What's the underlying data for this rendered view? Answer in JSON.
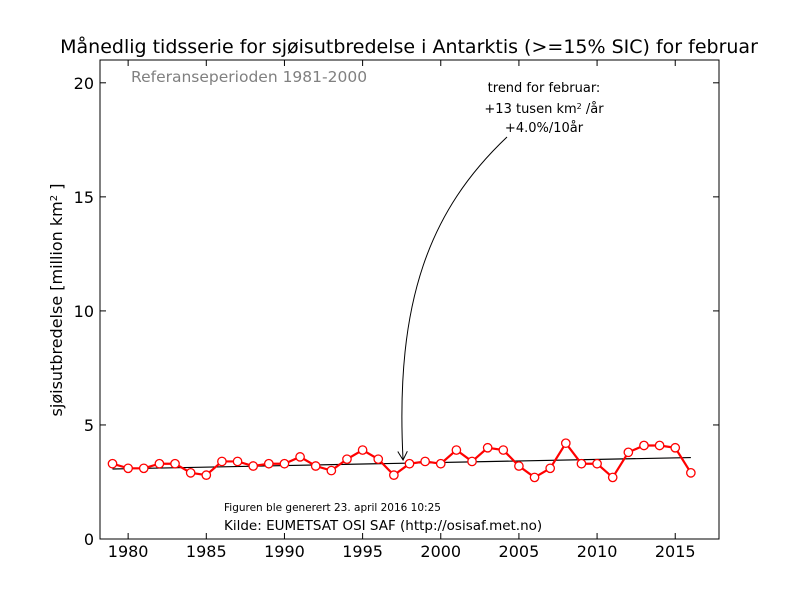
{
  "chart_data": {
    "type": "line",
    "title": "Månedlig tidsserie for sjøisutbredelse i Antarktis (>=15% SIC) for februar",
    "ylabel_main": "sjøisutbredelse [million km",
    "ylabel_sup": "2",
    "ylabel_end": " ]",
    "xlabel": "",
    "xlim": [
      1978.2,
      2017.8
    ],
    "ylim": [
      0,
      21
    ],
    "xticks": [
      1980,
      1985,
      1990,
      1995,
      2000,
      2005,
      2010,
      2015
    ],
    "yticks": [
      0,
      5,
      10,
      15,
      20
    ],
    "grid": false,
    "series": [
      {
        "color": "#ff0000",
        "x": [
          1979,
          1980,
          1981,
          1982,
          1983,
          1984,
          1985,
          1986,
          1987,
          1988,
          1989,
          1990,
          1991,
          1992,
          1993,
          1994,
          1995,
          1996,
          1997,
          1998,
          1999,
          2000,
          2001,
          2002,
          2003,
          2004,
          2005,
          2006,
          2007,
          2008,
          2009,
          2010,
          2011,
          2012,
          2013,
          2014,
          2015,
          2016
        ],
        "y": [
          3.3,
          3.1,
          3.1,
          3.3,
          3.3,
          2.9,
          2.8,
          3.4,
          3.4,
          3.2,
          3.3,
          3.3,
          3.6,
          3.2,
          3.0,
          3.5,
          3.9,
          3.5,
          2.8,
          3.3,
          3.4,
          3.3,
          3.9,
          3.4,
          4.0,
          3.9,
          3.2,
          2.7,
          3.1,
          4.2,
          3.3,
          3.3,
          2.7,
          3.8,
          4.1,
          4.1,
          4.0,
          2.9
        ]
      }
    ],
    "trend_line": {
      "color": "#000000",
      "x": [
        1979,
        2016
      ],
      "y": [
        3.07,
        3.57
      ]
    },
    "annotations": {
      "reference_period": "Referanseperioden 1981-2000",
      "trend_line1": "trend for februar:",
      "trend_line2_a": "+13 tusen km",
      "trend_line2_sup": "2",
      "trend_line2_b": " /år",
      "trend_line3": "+4.0%/10år",
      "generated": "Figuren ble generert 23. april 2016 10:25",
      "source": "Kilde: EUMETSAT OSI SAF (http://osisaf.met.no)"
    }
  }
}
